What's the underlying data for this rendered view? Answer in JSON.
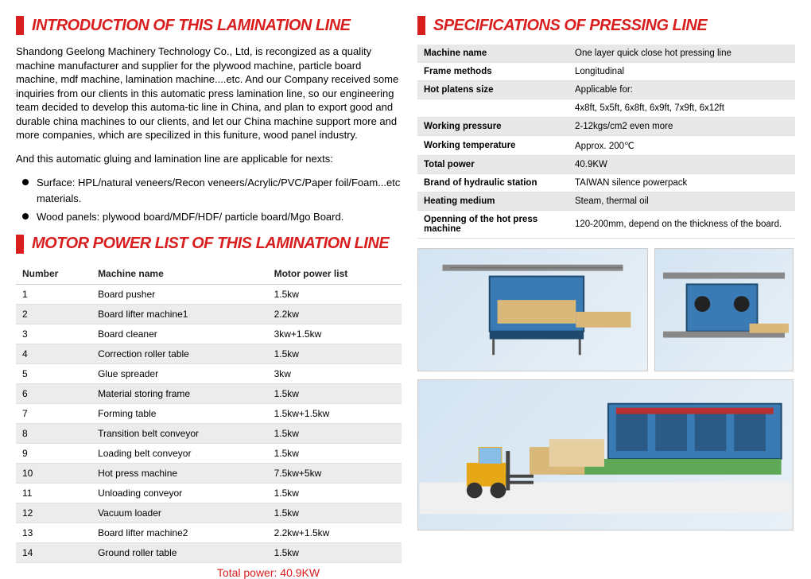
{
  "left": {
    "header1": "INTRODUCTION OF THIS LAMINATION LINE",
    "intro_p1": "Shandong Geelong Machinery Technology Co., Ltd, is recongized as a quality machine manufacturer and supplier for the plywood machine, particle board machine, mdf machine, lamination machine....etc. And our Company received some inquiries from our clients in this automatic press lamination line, so our engineering team decided to develop this automa-tic line in China, and plan to export good and durable china machines to our clients, and let our China machine support more and more companies, which are specilized in this funiture, wood panel industry.",
    "intro_p2": "And this automatic gluing and lamination line are applicable for nexts:",
    "bullets": [
      "Surface: HPL/natural veneers/Recon veneers/Acrylic/PVC/Paper foil/Foam...etc materials.",
      "Wood panels: plywood board/MDF/HDF/ particle board/Mgo Board."
    ],
    "header2": "MOTOR POWER LIST OF THIS LAMINATION LINE",
    "motor_columns": [
      "Number",
      "Machine name",
      "Motor power list"
    ],
    "motor_rows": [
      [
        "1",
        "Board pusher",
        "1.5kw"
      ],
      [
        "2",
        "Board lifter machine1",
        "2.2kw"
      ],
      [
        "3",
        "Board cleaner",
        "3kw+1.5kw"
      ],
      [
        "4",
        "Correction roller table",
        "1.5kw"
      ],
      [
        "5",
        "Glue spreader",
        "3kw"
      ],
      [
        "6",
        "Material storing frame",
        "1.5kw"
      ],
      [
        "7",
        "Forming table",
        "1.5kw+1.5kw"
      ],
      [
        "8",
        "Transition belt conveyor",
        "1.5kw"
      ],
      [
        "9",
        "Loading belt conveyor",
        "1.5kw"
      ],
      [
        "10",
        "Hot press machine",
        "7.5kw+5kw"
      ],
      [
        "11",
        "Unloading conveyor",
        "1.5kw"
      ],
      [
        "12",
        "Vacuum loader",
        "1.5kw"
      ],
      [
        "13",
        "Board lifter machine2",
        "2.2kw+1.5kw"
      ],
      [
        "14",
        "Ground roller table",
        "1.5kw"
      ]
    ],
    "total_power": "Total power: 40.9KW"
  },
  "right": {
    "header1": "SPECIFICATIONS OF PRESSING LINE",
    "spec_rows": [
      [
        "Machine name",
        "One layer quick close hot pressing line"
      ],
      [
        "Frame methods",
        "Longitudinal"
      ],
      [
        "Hot platens size",
        "Applicable for:\n4x8ft, 5x5ft, 6x8ft, 6x9ft, 7x9ft, 6x12ft"
      ],
      [
        "Working pressure",
        "2-12kgs/cm2 even more"
      ],
      [
        "Working temperature",
        "Approx. 200℃"
      ],
      [
        "Total power",
        "40.9KW"
      ],
      [
        "Brand of hydraulic station",
        "TAIWAN silence powerpack"
      ],
      [
        "Heating medium",
        "Steam, thermal oil"
      ],
      [
        "Openning of the hot press machine",
        "120-200mm, depend on the thickness of the board."
      ]
    ]
  },
  "colors": {
    "accent_red": "#d81e1e",
    "row_gray": "#e8e8e8",
    "machine_blue": "#3a7ab5",
    "board_tan": "#d9b87a",
    "forklift_yellow": "#e6a817",
    "conveyor_green": "#5ea858"
  }
}
